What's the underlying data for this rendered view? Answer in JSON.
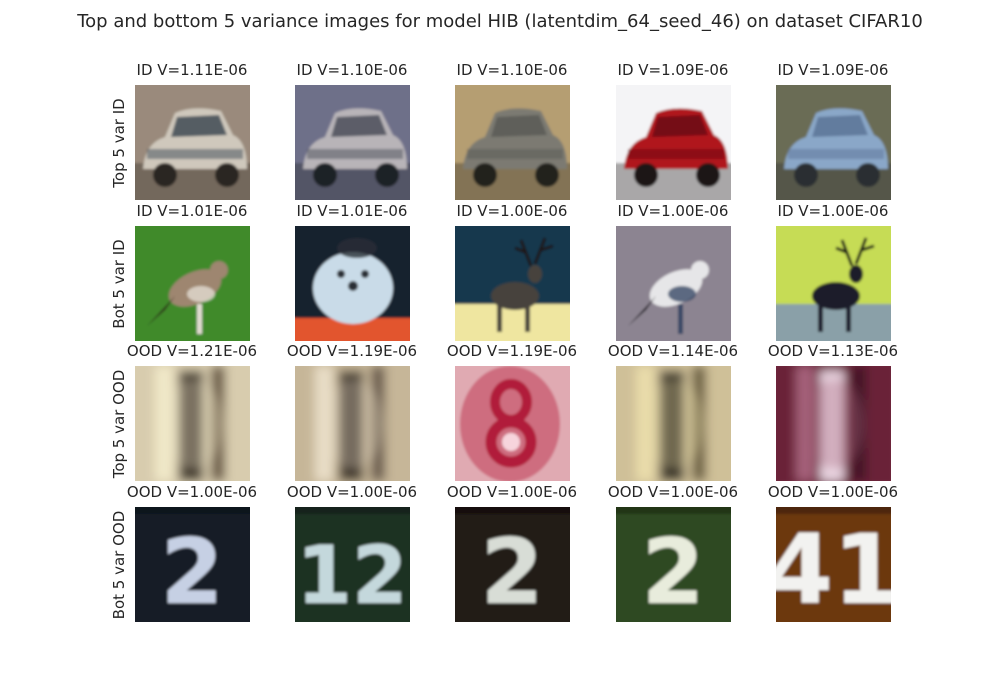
{
  "title": "Top and bottom 5 variance images for model HIB (latentdim_64_seed_46) on dataset CIFAR10",
  "rows": [
    {
      "label": "Top 5 var ID",
      "cells": [
        {
          "title": "ID V=1.11E-06",
          "subject": "car",
          "palette": {
            "bg": "#9a8a7c",
            "main": "#cfc8bc",
            "accent": "#3e4a55",
            "dark": "#2a2623"
          }
        },
        {
          "title": "ID V=1.10E-06",
          "subject": "car",
          "palette": {
            "bg": "#6e7089",
            "main": "#b8b4b8",
            "accent": "#4a4d58",
            "dark": "#1f2226"
          }
        },
        {
          "title": "ID V=1.10E-06",
          "subject": "car",
          "palette": {
            "bg": "#b59e72",
            "main": "#7c7a72",
            "accent": "#5a5a56",
            "dark": "#24231f"
          }
        },
        {
          "title": "ID V=1.09E-06",
          "subject": "car",
          "palette": {
            "bg": "#f4f4f6",
            "main": "#b0121c",
            "accent": "#6a0b10",
            "dark": "#1c1618"
          }
        },
        {
          "title": "ID V=1.09E-06",
          "subject": "car",
          "palette": {
            "bg": "#6b6c55",
            "main": "#8aa7c8",
            "accent": "#5b7497",
            "dark": "#2a2e33"
          }
        }
      ]
    },
    {
      "label": "Bot 5 var ID",
      "cells": [
        {
          "title": "ID V=1.01E-06",
          "subject": "bird",
          "palette": {
            "bg": "#3f8a2c",
            "main": "#9e8670",
            "accent": "#e2dcd2",
            "dark": "#2a2119"
          }
        },
        {
          "title": "ID V=1.01E-06",
          "subject": "dog",
          "palette": {
            "bg": "#12202e",
            "main": "#c9dbe8",
            "accent": "#e2552e",
            "dark": "#2b2f36"
          }
        },
        {
          "title": "ID V=1.00E-06",
          "subject": "deer",
          "palette": {
            "bg": "#16384e",
            "main": "#47433d",
            "accent": "#efe6a0",
            "dark": "#1a1714"
          }
        },
        {
          "title": "ID V=1.00E-06",
          "subject": "bird",
          "palette": {
            "bg": "#8c8491",
            "main": "#e6e6e8",
            "accent": "#3a4a66",
            "dark": "#16161c"
          }
        },
        {
          "title": "ID V=1.00E-06",
          "subject": "deer",
          "palette": {
            "bg": "#c6dc54",
            "main": "#1e1d2a",
            "accent": "#8aa0a8",
            "dark": "#101018"
          }
        }
      ]
    },
    {
      "label": "Top 5 var OOD",
      "cells": [
        {
          "title": "OOD V=1.21E-06",
          "subject": "blur-digit",
          "palette": {
            "bg": "#d8ccae",
            "main": "#3b3228",
            "accent": "#f0e8c8",
            "dark": "#6a5a44"
          }
        },
        {
          "title": "OOD V=1.19E-06",
          "subject": "blur-digit",
          "palette": {
            "bg": "#c6b698",
            "main": "#3a3128",
            "accent": "#e8ddc6",
            "dark": "#6a5c4e"
          }
        },
        {
          "title": "OOD V=1.19E-06",
          "subject": "digit-8",
          "palette": {
            "bg": "#e0aab2",
            "main": "#b11a3a",
            "accent": "#f7d4dc",
            "dark": "#c2455e"
          }
        },
        {
          "title": "OOD V=1.14E-06",
          "subject": "blur-digit",
          "palette": {
            "bg": "#cfc098",
            "main": "#2f2a20",
            "accent": "#e9dcaa",
            "dark": "#6d6142"
          }
        },
        {
          "title": "OOD V=1.13E-06",
          "subject": "blur-digit",
          "palette": {
            "bg": "#6a2438",
            "main": "#ecd8e4",
            "accent": "#a46079",
            "dark": "#431828"
          }
        }
      ]
    },
    {
      "label": "Bot 5 var OOD",
      "cells": [
        {
          "title": "OOD V=1.00E-06",
          "subject": "digit-2",
          "palette": {
            "bg": "#141a26",
            "main": "#c6d0e4",
            "accent": "#7d88a8",
            "dark": "#0c0e14"
          }
        },
        {
          "title": "OOD V=1.00E-06",
          "subject": "digit-12",
          "palette": {
            "bg": "#1c3024",
            "main": "#c4d8dc",
            "accent": "#6e8c96",
            "dark": "#101a14"
          }
        },
        {
          "title": "OOD V=1.00E-06",
          "subject": "digit-2",
          "palette": {
            "bg": "#231a14",
            "main": "#d8ddd6",
            "accent": "#8d8c84",
            "dark": "#100c0a"
          }
        },
        {
          "title": "OOD V=1.00E-06",
          "subject": "digit-2",
          "palette": {
            "bg": "#2f4a22",
            "main": "#e8ecdc",
            "accent": "#9cb08a",
            "dark": "#182812"
          }
        },
        {
          "title": "OOD V=1.00E-06",
          "subject": "digit-41",
          "palette": {
            "bg": "#6c3810",
            "main": "#f2f2f0",
            "accent": "#b88a60",
            "dark": "#3a1c08"
          }
        }
      ]
    }
  ]
}
